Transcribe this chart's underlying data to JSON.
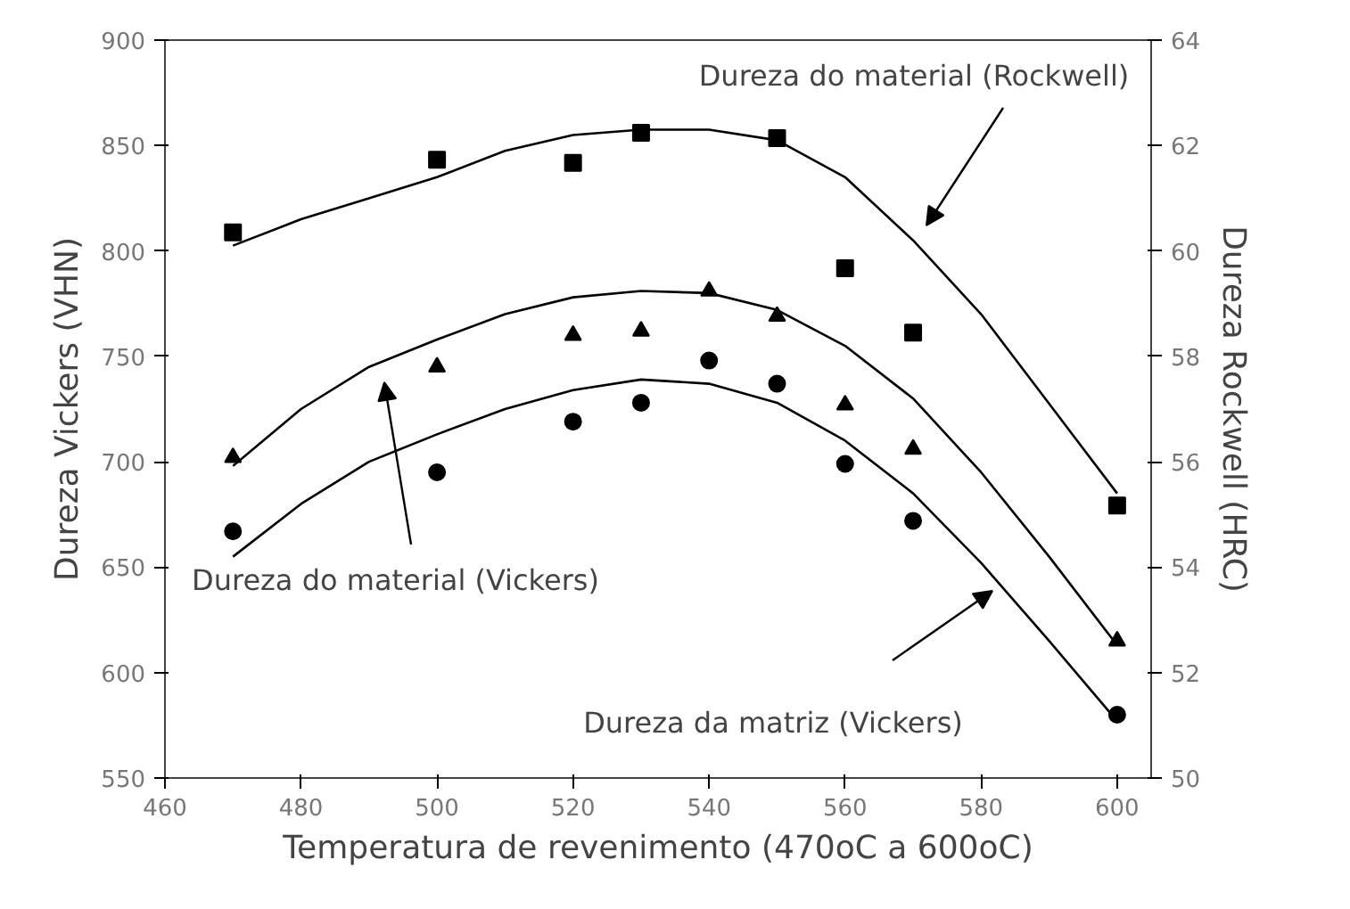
{
  "chart_data": {
    "type": "scatter",
    "xlabel": "Temperatura de revenimento (470oC a 600oC)",
    "ylabel": "Dureza Vickers (VHN)",
    "y2label": "Dureza Rockwell (HRC)",
    "xlim": [
      460,
      605
    ],
    "ylim": [
      550,
      900
    ],
    "y2lim": [
      50,
      64
    ],
    "xticks": [
      460,
      480,
      500,
      520,
      540,
      560,
      580,
      600
    ],
    "yticks": [
      550,
      600,
      650,
      700,
      750,
      800,
      850,
      900
    ],
    "y2ticks": [
      50,
      52,
      54,
      56,
      58,
      60,
      62,
      64
    ],
    "grid": false,
    "series": [
      {
        "marker": "square",
        "axis": "y2",
        "color": "#000000",
        "x": [
          470,
          500,
          520,
          530,
          550,
          560,
          570,
          600
        ],
        "values": [
          60.35,
          61.73,
          61.67,
          62.24,
          62.14,
          59.67,
          58.45,
          55.17
        ]
      },
      {
        "marker": "triangle",
        "color": "#000000",
        "x": [
          470,
          500,
          520,
          530,
          540,
          550,
          560,
          570,
          600
        ],
        "values": [
          702,
          745,
          760,
          762,
          781,
          769,
          727,
          706,
          615
        ]
      },
      {
        "marker": "circle",
        "color": "#000000",
        "x": [
          470,
          500,
          520,
          530,
          540,
          550,
          560,
          570,
          600
        ],
        "values": [
          667,
          695,
          719,
          728,
          748,
          737,
          699,
          672,
          580
        ]
      },
      {
        "type": "line",
        "axis": "y2",
        "color": "#000000",
        "x": [
          470,
          480,
          490,
          500,
          510,
          520,
          530,
          540,
          550,
          560,
          570,
          580,
          590,
          600
        ],
        "values": [
          60.1,
          60.6,
          61.0,
          61.4,
          61.9,
          62.2,
          62.3,
          62.3,
          62.1,
          61.4,
          60.2,
          58.8,
          57.1,
          55.4
        ]
      },
      {
        "type": "line",
        "color": "#000000",
        "x": [
          470,
          480,
          490,
          500,
          510,
          520,
          530,
          540,
          550,
          560,
          570,
          580,
          590,
          600
        ],
        "values": [
          698,
          725,
          745,
          758,
          770,
          778,
          781,
          780,
          772,
          755,
          730,
          695,
          655,
          613
        ]
      },
      {
        "type": "line",
        "color": "#000000",
        "x": [
          470,
          480,
          490,
          500,
          510,
          520,
          530,
          540,
          550,
          560,
          570,
          580,
          590,
          600
        ],
        "values": [
          655,
          680,
          700,
          713,
          725,
          734,
          739,
          737,
          728,
          710,
          685,
          652,
          615,
          577
        ]
      }
    ],
    "annotations": [
      "Dureza do material (Rockwell)",
      "Dureza do material (Vickers)",
      "Dureza da matriz (Vickers)"
    ]
  }
}
